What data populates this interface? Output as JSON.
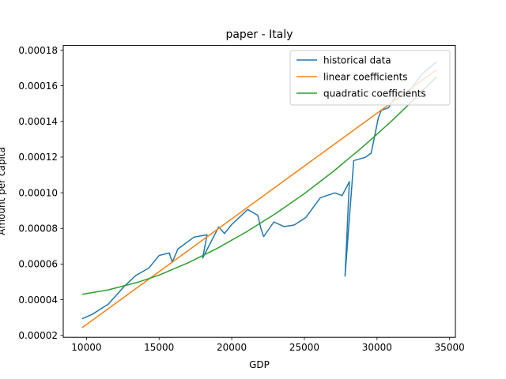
{
  "chart_data": {
    "type": "line",
    "title": "paper - Italy",
    "xlabel": "GDP",
    "ylabel": "Amount per capita",
    "xlim": [
      8400,
      35400
    ],
    "ylim": [
      1.89e-05,
      0.0001826
    ],
    "xticks": [
      {
        "value": 10000,
        "label": "10000"
      },
      {
        "value": 15000,
        "label": "15000"
      },
      {
        "value": 20000,
        "label": "20000"
      },
      {
        "value": 25000,
        "label": "25000"
      },
      {
        "value": 30000,
        "label": "30000"
      },
      {
        "value": 35000,
        "label": "35000"
      }
    ],
    "yticks": [
      {
        "value": 2e-05,
        "label": "0.00002"
      },
      {
        "value": 4e-05,
        "label": "0.00004"
      },
      {
        "value": 6e-05,
        "label": "0.00006"
      },
      {
        "value": 8e-05,
        "label": "0.00008"
      },
      {
        "value": 0.0001,
        "label": "0.00010"
      },
      {
        "value": 0.00012,
        "label": "0.00012"
      },
      {
        "value": 0.00014,
        "label": "0.00014"
      },
      {
        "value": 0.00016,
        "label": "0.00016"
      },
      {
        "value": 0.00018,
        "label": "0.00018"
      }
    ],
    "grid": false,
    "legend_position": "top-right",
    "series": [
      {
        "name": "historical data",
        "color": "#1f77b4",
        "points": [
          [
            9700,
            2.93e-05
          ],
          [
            10400,
            3.18e-05
          ],
          [
            11500,
            3.75e-05
          ],
          [
            12600,
            4.75e-05
          ],
          [
            13400,
            5.36e-05
          ],
          [
            14300,
            5.78e-05
          ],
          [
            15000,
            6.48e-05
          ],
          [
            15700,
            6.62e-05
          ],
          [
            15900,
            6.1e-05
          ],
          [
            16300,
            6.85e-05
          ],
          [
            17400,
            7.51e-05
          ],
          [
            18300,
            7.64e-05
          ],
          [
            18000,
            6.34e-05
          ],
          [
            19100,
            8.08e-05
          ],
          [
            19500,
            7.71e-05
          ],
          [
            20000,
            8.22e-05
          ],
          [
            21100,
            9.06e-05
          ],
          [
            21800,
            8.73e-05
          ],
          [
            22000,
            8.01e-05
          ],
          [
            22200,
            7.54e-05
          ],
          [
            22900,
            8.36e-05
          ],
          [
            23600,
            8.1e-05
          ],
          [
            24300,
            8.19e-05
          ],
          [
            25100,
            8.61e-05
          ],
          [
            26100,
            9.72e-05
          ],
          [
            27100,
            9.99e-05
          ],
          [
            27600,
            9.84e-05
          ],
          [
            28100,
            0.0001062
          ],
          [
            27800,
            5.32e-05
          ],
          [
            28400,
            0.000118
          ],
          [
            29200,
            0.0001199
          ],
          [
            29600,
            0.0001222
          ],
          [
            30100,
            0.0001422
          ],
          [
            30300,
            0.0001462
          ],
          [
            30800,
            0.0001477
          ],
          [
            31400,
            0.0001559
          ],
          [
            32200,
            0.0001568
          ],
          [
            33100,
            0.0001665
          ],
          [
            34100,
            0.0001735
          ]
        ]
      },
      {
        "name": "linear coefficients",
        "color": "#ff7f0e",
        "points": [
          [
            9700,
            2.43e-05
          ],
          [
            34100,
            0.0001689
          ]
        ]
      },
      {
        "name": "quadratic coefficients",
        "color": "#2ca02c",
        "points": [
          [
            9700,
            4.3e-05
          ],
          [
            11500,
            4.55e-05
          ],
          [
            13500,
            4.97e-05
          ],
          [
            15000,
            5.38e-05
          ],
          [
            17000,
            6.07e-05
          ],
          [
            19000,
            6.88e-05
          ],
          [
            21000,
            7.8e-05
          ],
          [
            23000,
            8.82e-05
          ],
          [
            25000,
            9.95e-05
          ],
          [
            27000,
            0.000112
          ],
          [
            28000,
            0.0001188
          ],
          [
            29000,
            0.0001256
          ],
          [
            30000,
            0.0001328
          ],
          [
            31000,
            0.0001402
          ],
          [
            32000,
            0.000148
          ],
          [
            33000,
            0.000156
          ],
          [
            34100,
            0.000165
          ]
        ]
      }
    ]
  }
}
